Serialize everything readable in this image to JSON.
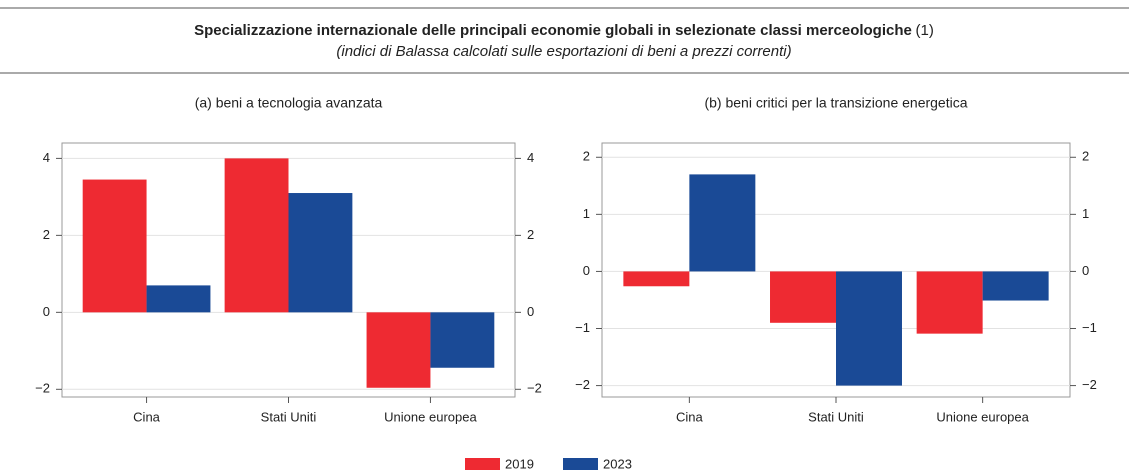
{
  "title": "Specializzazione internazionale delle principali economie globali in selezionate classi merceologiche",
  "title_note": "(1)",
  "subtitle": "(indici di Balassa calcolati sulle esportazioni di beni a prezzi correnti)",
  "legend": [
    {
      "name": "2019",
      "color": "#ee2a32"
    },
    {
      "name": "2023",
      "color": "#1a4a96"
    }
  ],
  "chart_data": [
    {
      "type": "bar",
      "title": "(a) beni a tecnologia avanzata",
      "categories": [
        "Cina",
        "Stati Uniti",
        "Unione europea"
      ],
      "series": [
        {
          "values": [
            3.45,
            4.0,
            -1.96
          ]
        },
        {
          "values": [
            0.7,
            3.1,
            -1.44
          ]
        }
      ],
      "ylim": [
        -2.2,
        4.4
      ],
      "yticks": [
        {
          "value": -2,
          "label": "−2"
        },
        0,
        2,
        4
      ],
      "grid": true
    },
    {
      "type": "bar",
      "title": "(b) beni critici per la transizione energetica",
      "categories": [
        "Cina",
        "Stati Uniti",
        "Unione europea"
      ],
      "series": [
        {
          "values": [
            -0.26,
            -0.9,
            -1.09
          ]
        },
        {
          "values": [
            1.7,
            -2.0,
            -0.51
          ]
        }
      ],
      "ylim": [
        -2.2,
        2.25
      ],
      "yticks": [
        {
          "value": -2,
          "label": "−2"
        },
        {
          "value": -1,
          "label": "−1"
        },
        0,
        1,
        2
      ],
      "grid": true
    }
  ]
}
